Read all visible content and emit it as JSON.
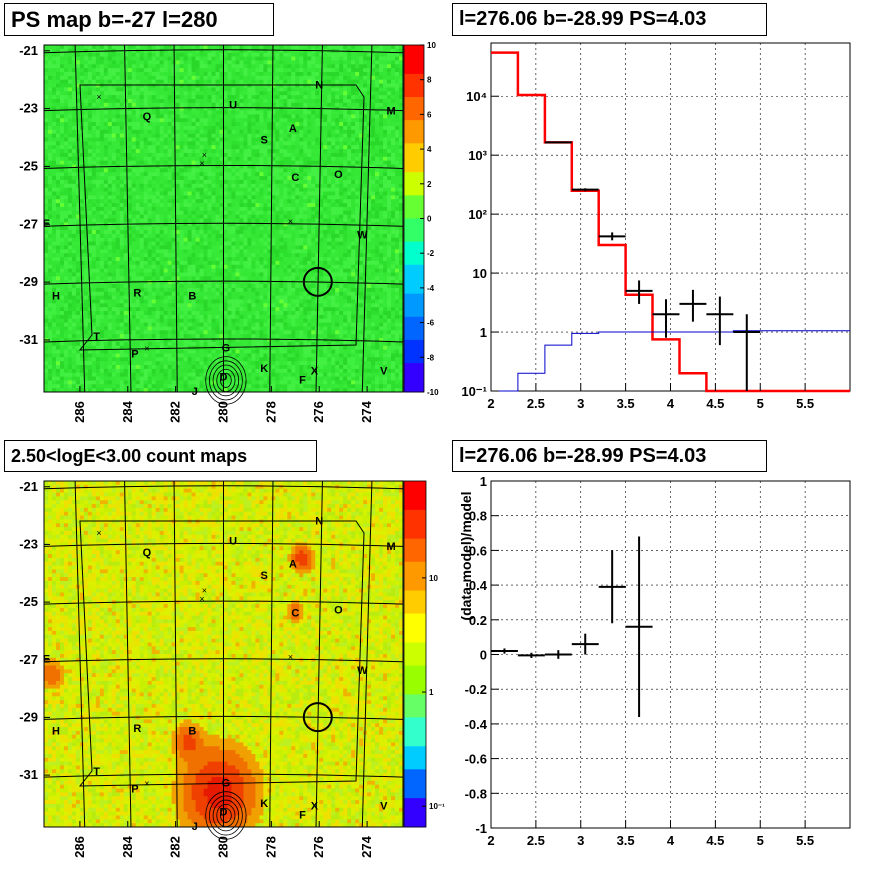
{
  "titles": {
    "tl": "PS map b=-27 l=280",
    "tr": "l=276.06 b=-28.99 PS=4.03",
    "bl": "2.50<logE<3.00 count maps",
    "br": "l=276.06 b=-28.99 PS=4.03"
  },
  "map_axes": {
    "y_ticks": [
      "-21",
      "-23",
      "-25",
      "-27",
      "-29",
      "-31"
    ],
    "x_ticks": [
      "286",
      "284",
      "282",
      "280",
      "278",
      "276",
      "274"
    ]
  },
  "source_labels": [
    "N",
    "M",
    "U",
    "Q",
    "A",
    "S",
    "C",
    "O",
    "E",
    "W",
    "H",
    "R",
    "B",
    "T",
    "P",
    "G",
    "K",
    "X",
    "F",
    "V",
    "J",
    "D"
  ],
  "ps_colorbar": {
    "ticks": [
      "10",
      "8",
      "6",
      "4",
      "2",
      "0",
      "-2",
      "-4",
      "-6",
      "-8",
      "-10"
    ]
  },
  "count_colorbar": {
    "ticks": [
      "10",
      "1",
      "10⁻¹"
    ]
  },
  "chart_data": [
    {
      "type": "heatmap",
      "title": "PS map b=-27 l=280",
      "xlim": [
        287.5,
        272.5
      ],
      "ylim": [
        -32.8,
        -20.8
      ],
      "zlim": [
        -10,
        10
      ],
      "x_ticks": [
        286,
        284,
        282,
        280,
        278,
        276,
        274
      ],
      "y_ticks": [
        -21,
        -23,
        -25,
        -27,
        -29,
        -31
      ],
      "candidate": {
        "l": 276.06,
        "b": -28.99
      }
    },
    {
      "type": "line",
      "title": "l=276.06 b=-28.99 PS=4.03",
      "yscale": "log",
      "xlim": [
        2,
        6
      ],
      "ylim": [
        0.1,
        80000
      ],
      "x_ticks": [
        2,
        2.5,
        3,
        3.5,
        4,
        4.5,
        5,
        5.5
      ],
      "y_ticks": [
        "10⁻¹",
        "1",
        "10",
        "10²",
        "10³",
        "10⁴"
      ],
      "series": [
        {
          "color": "#ff0000",
          "edges": [
            2.0,
            2.3,
            2.6,
            2.9,
            3.2,
            3.5,
            3.8,
            4.1,
            4.4,
            6.0
          ],
          "values": [
            55000,
            10500,
            1650,
            250,
            30,
            4.3,
            0.75,
            0.2,
            0.1
          ]
        },
        {
          "color": "#0000cc",
          "edges": [
            2.0,
            2.3,
            2.6,
            2.9,
            3.2,
            3.5,
            3.8,
            4.1,
            4.4,
            4.7,
            6.0
          ],
          "values": [
            0.1,
            0.2,
            0.6,
            0.95,
            1.0,
            1.0,
            1.0,
            1.0,
            1.0,
            1.05
          ]
        },
        {
          "color": "#000000",
          "kind": "points",
          "points": [
            {
              "x": 2.75,
              "y": 1650,
              "xe": 0.15,
              "ylo": 1600,
              "yhi": 1700
            },
            {
              "x": 3.05,
              "y": 260,
              "xe": 0.15,
              "ylo": 245,
              "yhi": 275
            },
            {
              "x": 3.35,
              "y": 42,
              "xe": 0.15,
              "ylo": 36,
              "yhi": 49
            },
            {
              "x": 3.65,
              "y": 5,
              "xe": 0.15,
              "ylo": 3,
              "yhi": 7.5
            },
            {
              "x": 3.95,
              "y": 2,
              "xe": 0.15,
              "ylo": 0.8,
              "yhi": 3.6
            },
            {
              "x": 4.25,
              "y": 3,
              "xe": 0.15,
              "ylo": 1.5,
              "yhi": 5.2
            },
            {
              "x": 4.55,
              "y": 2,
              "xe": 0.15,
              "ylo": 0.6,
              "yhi": 4.0
            },
            {
              "x": 4.85,
              "y": 1,
              "xe": 0.15,
              "ylo": 0.1,
              "yhi": 2.0
            }
          ]
        }
      ]
    },
    {
      "type": "heatmap",
      "title": "2.50<logE<3.00 count maps",
      "xlim": [
        287.5,
        272.5
      ],
      "ylim": [
        -32.8,
        -20.8
      ],
      "zscale": "log",
      "x_ticks": [
        286,
        284,
        282,
        280,
        278,
        276,
        274
      ],
      "y_ticks": [
        -21,
        -23,
        -25,
        -27,
        -29,
        -31
      ],
      "candidate": {
        "l": 276.06,
        "b": -28.99
      }
    },
    {
      "type": "scatter",
      "title": "l=276.06 b=-28.99 PS=4.03",
      "ylabel": "(data-model)/model",
      "xlim": [
        2,
        6
      ],
      "ylim": [
        -1,
        1
      ],
      "x_ticks": [
        2,
        2.5,
        3,
        3.5,
        4,
        4.5,
        5,
        5.5
      ],
      "y_ticks": [
        1,
        0.8,
        0.6,
        0.4,
        0.2,
        0,
        -0.2,
        -0.4,
        -0.6,
        -0.8,
        -1
      ],
      "points": [
        {
          "x": 2.15,
          "y": 0.02,
          "xe": 0.15,
          "ye": 0.015
        },
        {
          "x": 2.45,
          "y": -0.005,
          "xe": 0.15,
          "ye": 0.015
        },
        {
          "x": 2.75,
          "y": 0.0,
          "xe": 0.15,
          "ye": 0.025
        },
        {
          "x": 3.05,
          "y": 0.06,
          "xe": 0.15,
          "ye": 0.06
        },
        {
          "x": 3.35,
          "y": 0.39,
          "xe": 0.15,
          "ye": 0.21
        },
        {
          "x": 3.65,
          "y": 0.16,
          "xe": 0.15,
          "ye": 0.52
        }
      ]
    }
  ]
}
